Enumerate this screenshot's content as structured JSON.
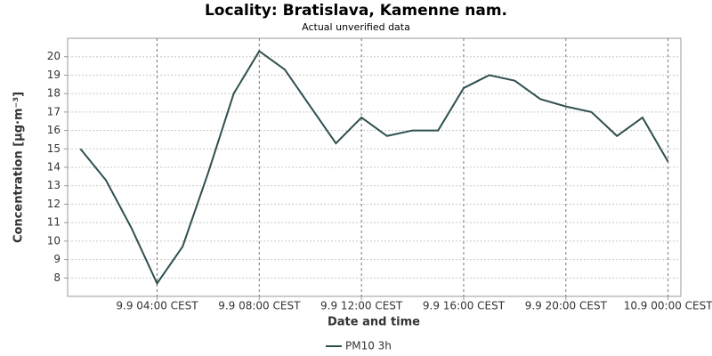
{
  "chart_data": {
    "type": "line",
    "title": "Locality: Bratislava, Kamenne nam.",
    "subtitle": "Actual unverified data",
    "x_label": "Date and time",
    "y_label": "Concentration [µg·m⁻³]",
    "x": [
      "9.9 01:00",
      "9.9 02:00",
      "9.9 03:00",
      "9.9 04:00",
      "9.9 05:00",
      "9.9 06:00",
      "9.9 07:00",
      "9.9 08:00",
      "9.9 09:00",
      "9.9 10:00",
      "9.9 11:00",
      "9.9 12:00",
      "9.9 13:00",
      "9.9 14:00",
      "9.9 15:00",
      "9.9 16:00",
      "9.9 17:00",
      "9.9 18:00",
      "9.9 19:00",
      "9.9 20:00",
      "9.9 21:00",
      "9.9 22:00",
      "9.9 23:00",
      "10.9 00:00"
    ],
    "series": [
      {
        "name": "PM10 3h",
        "color": "#2f4f4f",
        "values": [
          15.0,
          13.3,
          10.7,
          7.7,
          9.7,
          13.7,
          18.0,
          20.3,
          19.3,
          17.3,
          15.3,
          16.7,
          15.7,
          16.0,
          16.0,
          18.3,
          19.0,
          18.7,
          17.7,
          17.3,
          17.0,
          15.7,
          16.7,
          14.3
        ]
      }
    ],
    "xlim": [
      "9.9 00:30",
      "10.9 00:30"
    ],
    "xticks": [
      "9.9 04:00 CEST",
      "9.9 08:00 CEST",
      "9.9 12:00 CEST",
      "9.9 16:00 CEST",
      "9.9 20:00 CEST",
      "10.9 00:00 CEST"
    ],
    "ylim": [
      7,
      21
    ],
    "yticks": [
      8,
      9,
      10,
      11,
      12,
      13,
      14,
      15,
      16,
      17,
      18,
      19,
      20
    ],
    "grid": true
  }
}
